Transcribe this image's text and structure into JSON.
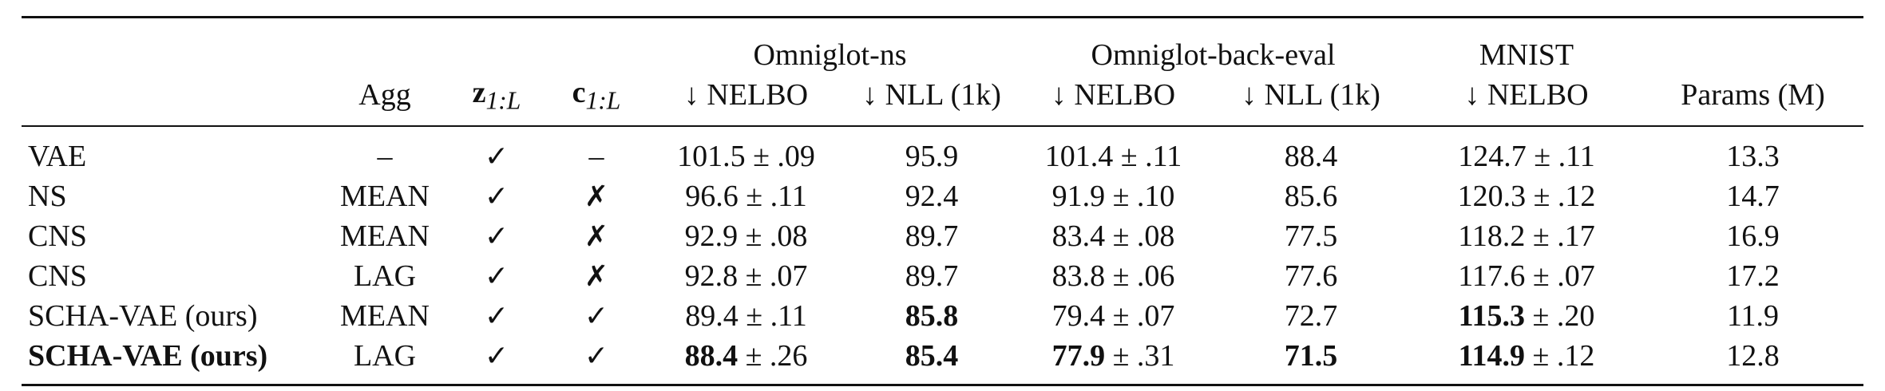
{
  "table": {
    "group_headers": {
      "omniglot_ns": "Omniglot-ns",
      "omniglot_back_eval": "Omniglot-back-eval",
      "mnist": "MNIST"
    },
    "column_headers": {
      "method": "",
      "agg": "Agg",
      "z": "z",
      "z_sub": "1:L",
      "c": "c",
      "c_sub": "1:L",
      "ns_nelbo": "↓ NELBO",
      "ns_nll": "↓ NLL (1k)",
      "back_nelbo": "↓ NELBO",
      "back_nll": "↓ NLL (1k)",
      "mnist_nelbo": "↓ NELBO",
      "params": "Params (M)"
    },
    "rows": [
      {
        "method": "VAE",
        "agg": "–",
        "z": "✓",
        "c": "–",
        "ns_nelbo_val": "101.5",
        "ns_nelbo_err": " ± .09",
        "ns_nll": "95.9",
        "back_nelbo_val": "101.4",
        "back_nelbo_err": " ± .11",
        "back_nll": "88.4",
        "mnist_nelbo_val": "124.7",
        "mnist_nelbo_err": " ± .11",
        "params": "13.3"
      },
      {
        "method": "NS",
        "agg": "MEAN",
        "z": "✓",
        "c": "✗",
        "ns_nelbo_val": "96.6",
        "ns_nelbo_err": " ± .11",
        "ns_nll": "92.4",
        "back_nelbo_val": "91.9",
        "back_nelbo_err": " ± .10",
        "back_nll": "85.6",
        "mnist_nelbo_val": "120.3",
        "mnist_nelbo_err": " ± .12",
        "params": "14.7"
      },
      {
        "method": "CNS",
        "agg": "MEAN",
        "z": "✓",
        "c": "✗",
        "ns_nelbo_val": "92.9",
        "ns_nelbo_err": " ± .08",
        "ns_nll": "89.7",
        "back_nelbo_val": "83.4",
        "back_nelbo_err": " ± .08",
        "back_nll": "77.5",
        "mnist_nelbo_val": "118.2",
        "mnist_nelbo_err": " ± .17",
        "params": "16.9"
      },
      {
        "method": "CNS",
        "agg": "LAG",
        "z": "✓",
        "c": "✗",
        "ns_nelbo_val": "92.8",
        "ns_nelbo_err": " ± .07",
        "ns_nll": "89.7",
        "back_nelbo_val": "83.8",
        "back_nelbo_err": " ± .06",
        "back_nll": "77.6",
        "mnist_nelbo_val": "117.6",
        "mnist_nelbo_err": " ± .07",
        "params": "17.2"
      },
      {
        "method": "SCHA-VAE (ours)",
        "agg": "MEAN",
        "z": "✓",
        "c": "✓",
        "ns_nelbo_val": "89.4",
        "ns_nelbo_err": " ± .11",
        "ns_nll": "85.8",
        "back_nelbo_val": "79.4",
        "back_nelbo_err": " ± .07",
        "back_nll": "72.7",
        "mnist_nelbo_val": "115.3",
        "mnist_nelbo_err": " ± .20",
        "params": "11.9"
      },
      {
        "method": "SCHA-VAE (ours)",
        "agg": "LAG",
        "z": "✓",
        "c": "✓",
        "ns_nelbo_val": "88.4",
        "ns_nelbo_err": " ± .26",
        "ns_nll": "85.4",
        "back_nelbo_val": "77.9",
        "back_nelbo_err": " ± .31",
        "back_nll": "71.5",
        "mnist_nelbo_val": "114.9",
        "mnist_nelbo_err": " ± .12",
        "params": "12.8"
      }
    ]
  }
}
